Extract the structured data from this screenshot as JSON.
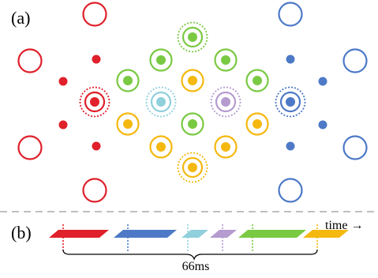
{
  "panel_a": {
    "label": "(a)",
    "colors": {
      "red": "#e0202a",
      "blue": "#4d79c7",
      "green": "#7ac943",
      "yellow": "#f5b80f",
      "cyan": "#8fd0dc",
      "purple": "#b59bd0"
    }
  },
  "panel_b": {
    "label": "(b)",
    "time_label": "time →",
    "duration_label": "66ms",
    "segment_colors": [
      "#e0202a",
      "#4d79c7",
      "#8fd0dc",
      "#b59bd0",
      "#7ac943",
      "#f5b80f"
    ]
  }
}
